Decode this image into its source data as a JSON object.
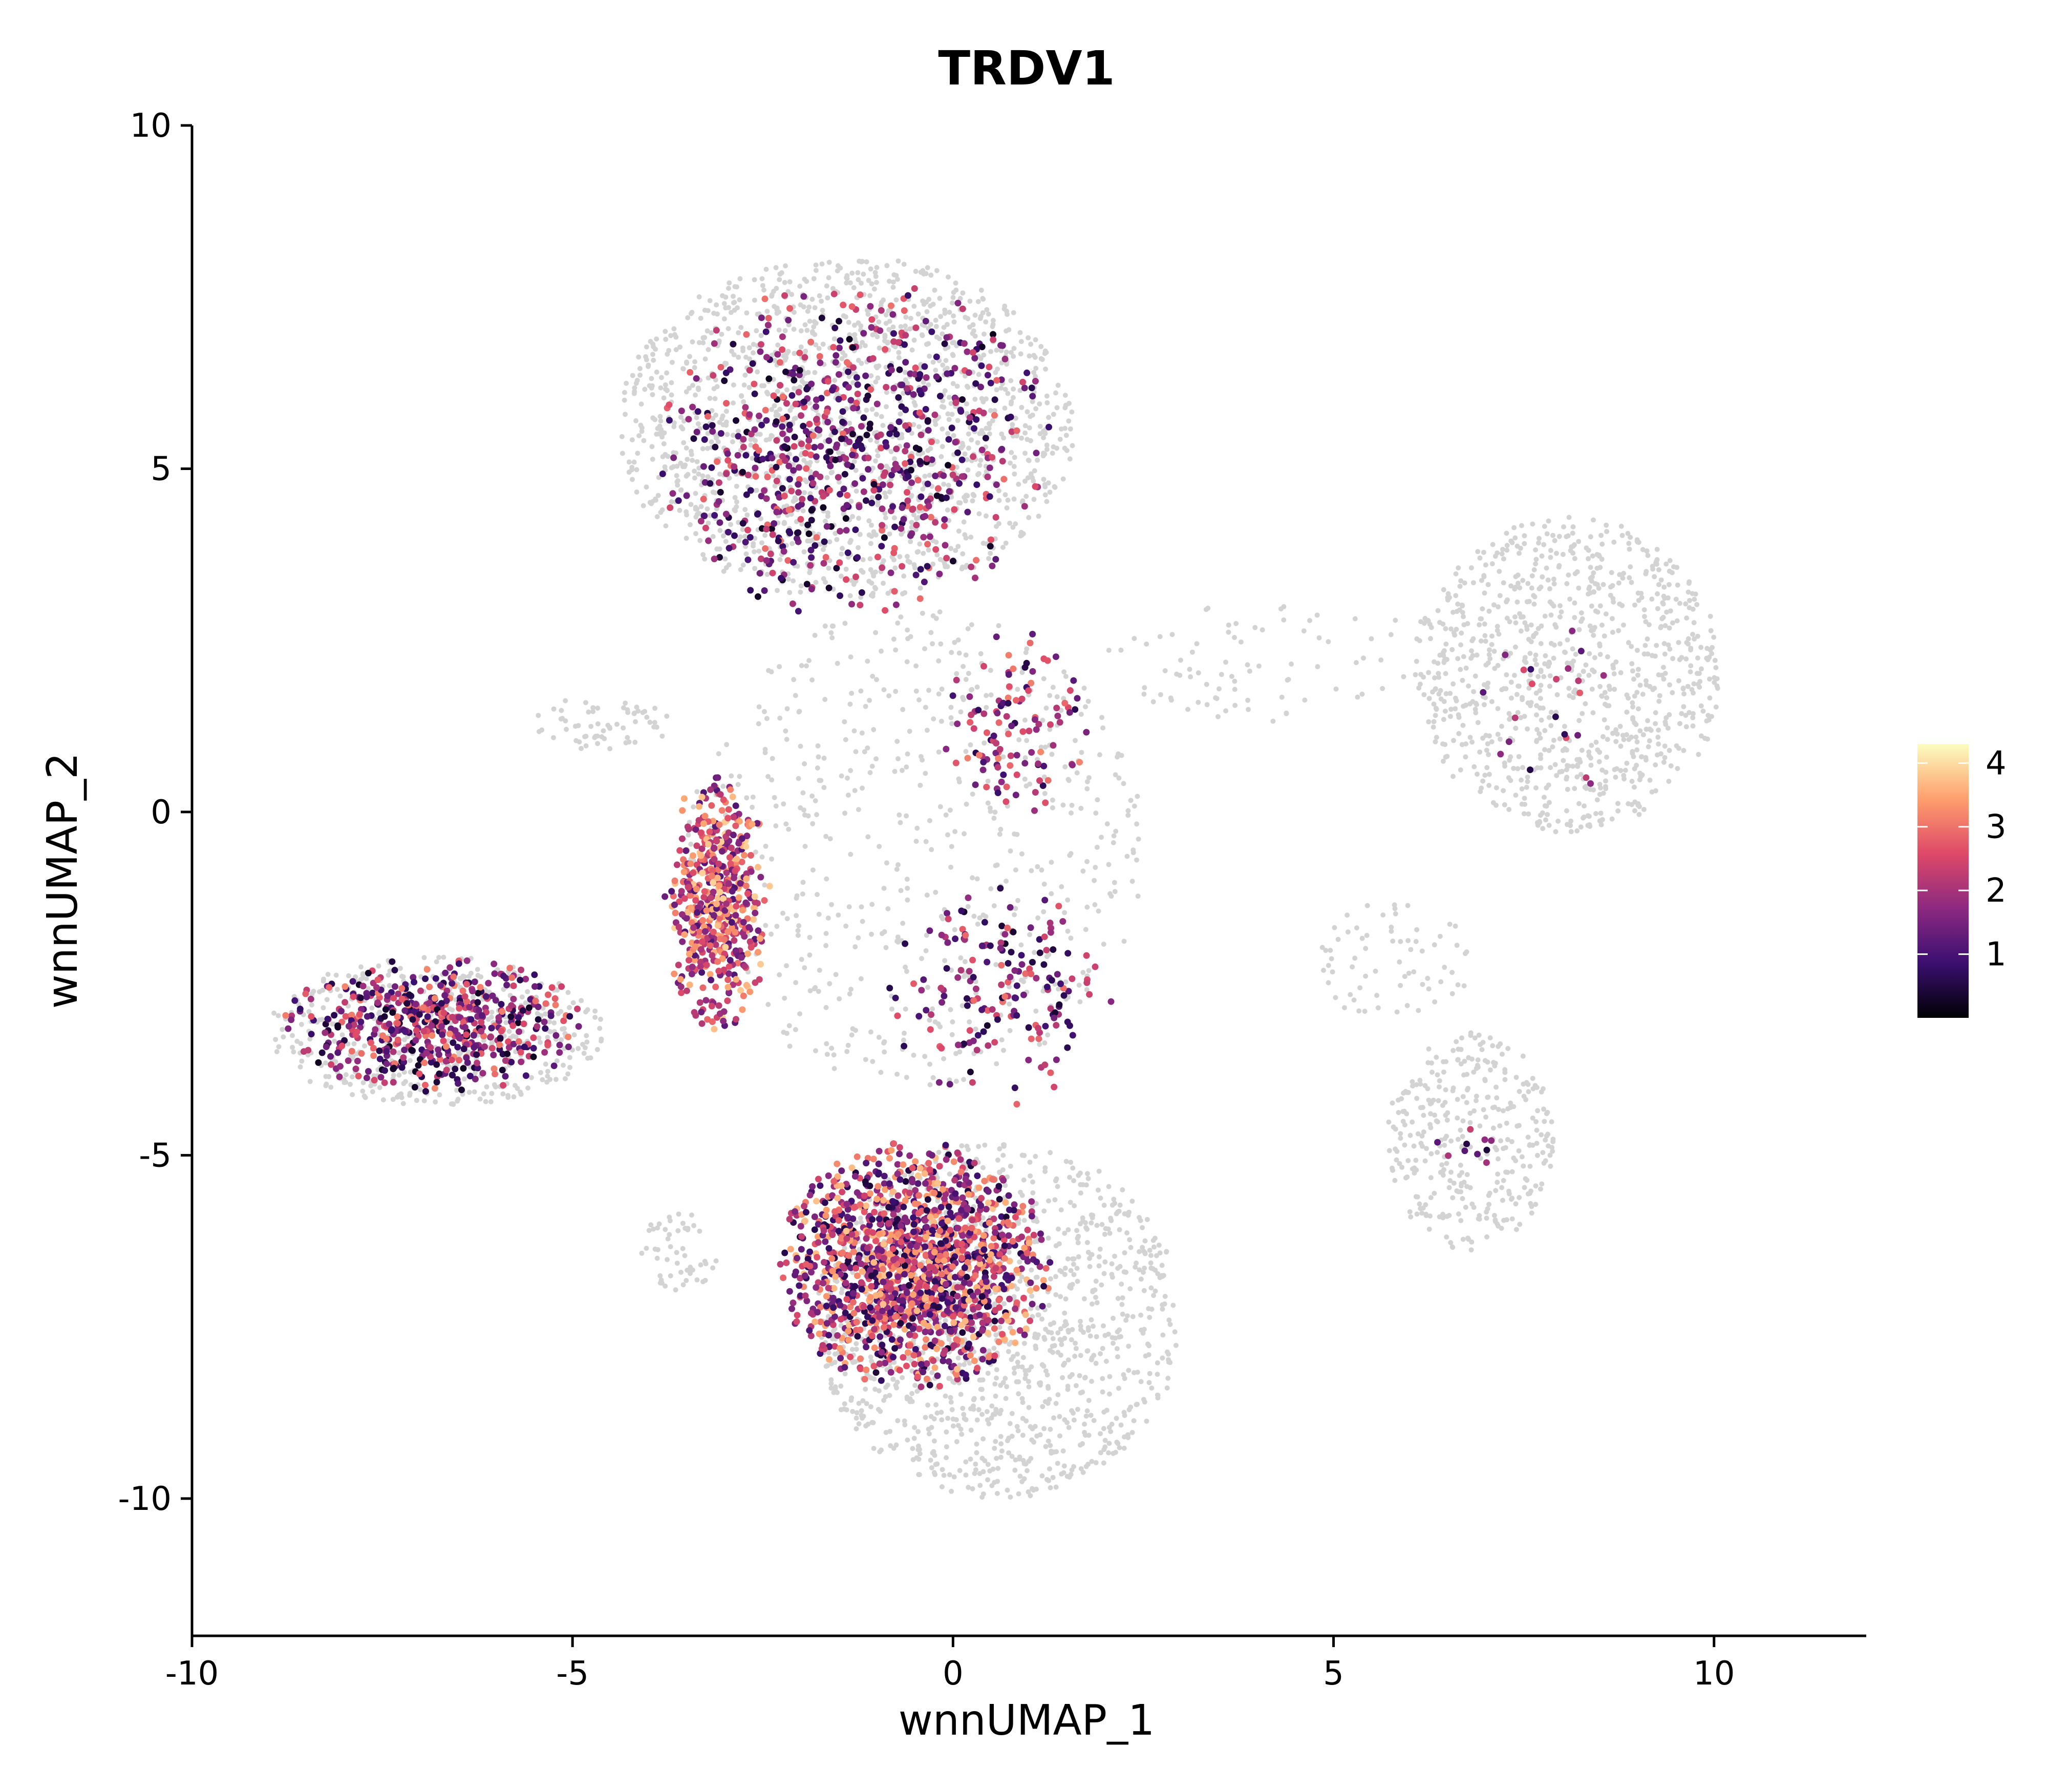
{
  "chart_data": {
    "type": "scatter",
    "title": "TRDV1",
    "xlabel": "wnnUMAP_1",
    "ylabel": "wnnUMAP_2",
    "xlim": [
      -10,
      12
    ],
    "ylim": [
      -12,
      10
    ],
    "x_ticks": [
      -10,
      -5,
      0,
      5,
      10
    ],
    "x_tick_labels": [
      "-10",
      "-5",
      "0",
      "5",
      "10"
    ],
    "y_ticks": [
      -10,
      -5,
      0,
      5,
      10
    ],
    "y_tick_labels": [
      "-10",
      "-5",
      "0",
      "5",
      "10"
    ],
    "grid": false,
    "legend": {
      "placement": "right",
      "type": "colorbar",
      "ticks": [
        1,
        2,
        3,
        4
      ],
      "tick_labels": [
        "1",
        "2",
        "3",
        "4"
      ],
      "range": [
        0,
        4.3
      ],
      "colors": [
        "#000004",
        "#3b0f70",
        "#8c2981",
        "#de4968",
        "#fe9f6d",
        "#fcfdbf"
      ]
    },
    "background_color": "#d3d3d3",
    "colormap": "magma",
    "background_regions": [
      {
        "name": "upper-cluster",
        "cx": -1.4,
        "cy": 5.6,
        "rx": 3.0,
        "ry": 2.5,
        "density": 0.9
      },
      {
        "name": "right-cluster",
        "cx": 8.1,
        "cy": 2.0,
        "rx": 2.0,
        "ry": 2.3,
        "density": 0.9
      },
      {
        "name": "lower-right-cluster",
        "cx": 6.8,
        "cy": -4.8,
        "rx": 1.1,
        "ry": 1.6,
        "density": 0.9
      },
      {
        "name": "left-arm",
        "cx": -6.8,
        "cy": -3.2,
        "rx": 2.2,
        "ry": 1.1,
        "density": 0.9
      },
      {
        "name": "lower-cluster",
        "cx": 0.6,
        "cy": -7.4,
        "rx": 2.4,
        "ry": 2.6,
        "density": 0.9
      },
      {
        "name": "small-left-blob",
        "cx": -3.6,
        "cy": -6.4,
        "rx": 0.5,
        "ry": 0.6,
        "density": 0.8
      },
      {
        "name": "center-sparse",
        "cx": -0.5,
        "cy": -0.5,
        "rx": 3.0,
        "ry": 3.5,
        "density": 0.25
      },
      {
        "name": "left-bridge",
        "cx": -4.6,
        "cy": 1.3,
        "rx": 0.9,
        "ry": 0.4,
        "density": 0.8
      },
      {
        "name": "bridge-right",
        "cx": 4.5,
        "cy": 2.2,
        "rx": 2.5,
        "ry": 0.9,
        "density": 0.2
      },
      {
        "name": "thin-strand",
        "cx": 5.8,
        "cy": -2.2,
        "rx": 1.0,
        "ry": 0.9,
        "density": 0.35
      }
    ],
    "expressing_regions": [
      {
        "name": "upper-cluster",
        "cx": -1.3,
        "cy": 5.3,
        "rx": 2.6,
        "ry": 2.5,
        "count": 720,
        "value_range": [
          0.2,
          3.0
        ]
      },
      {
        "name": "left-arm",
        "cx": -6.8,
        "cy": -3.1,
        "rx": 2.0,
        "ry": 1.0,
        "count": 560,
        "value_range": [
          0.2,
          3.2
        ]
      },
      {
        "name": "central-spine",
        "cx": -3.1,
        "cy": -1.3,
        "rx": 0.7,
        "ry": 1.9,
        "count": 520,
        "value_range": [
          1.0,
          3.9
        ]
      },
      {
        "name": "lower-dense",
        "cx": -0.5,
        "cy": -6.6,
        "rx": 1.8,
        "ry": 1.8,
        "count": 1500,
        "value_range": [
          0.4,
          3.8
        ]
      },
      {
        "name": "mid-right",
        "cx": 0.8,
        "cy": 1.2,
        "rx": 1.0,
        "ry": 1.5,
        "count": 110,
        "value_range": [
          0.5,
          3.2
        ]
      },
      {
        "name": "mid-lower",
        "cx": 0.6,
        "cy": -2.7,
        "rx": 1.5,
        "ry": 1.6,
        "count": 170,
        "value_range": [
          0.3,
          3.0
        ]
      },
      {
        "name": "right-cluster",
        "cx": 7.7,
        "cy": 1.6,
        "rx": 1.5,
        "ry": 1.5,
        "count": 22,
        "value_range": [
          0.5,
          3.0
        ]
      },
      {
        "name": "lower-right-cluster",
        "cx": 6.8,
        "cy": -5.0,
        "rx": 0.5,
        "ry": 0.6,
        "count": 10,
        "value_range": [
          0.4,
          2.5
        ]
      }
    ]
  }
}
